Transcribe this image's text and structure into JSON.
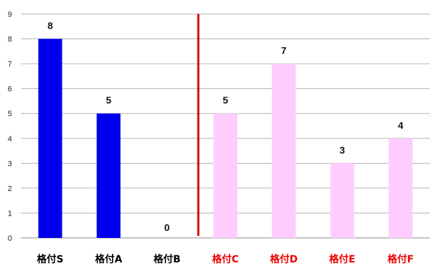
{
  "chart_data": {
    "type": "bar",
    "categories": [
      "格付S",
      "格付A",
      "格付B",
      "格付C",
      "格付D",
      "格付E",
      "格付F"
    ],
    "values": [
      8,
      5,
      0,
      5,
      7,
      3,
      4
    ],
    "ylim": [
      0,
      9
    ],
    "yticks": [
      "0",
      "1",
      "2",
      "3",
      "4",
      "5",
      "6",
      "7",
      "8",
      "9"
    ],
    "data_labels": [
      "8",
      "5",
      "0",
      "5",
      "7",
      "3",
      "4"
    ],
    "bar_colors": [
      "#0000ee",
      "#0000ee",
      "#0000ee",
      "#ffccff",
      "#ffccff",
      "#ffccff",
      "#ffccff"
    ],
    "category_colors": [
      "#000000",
      "#000000",
      "#000000",
      "#ee0000",
      "#ee0000",
      "#ee0000",
      "#ee0000"
    ],
    "separator_color": "#dd0000",
    "grid": true,
    "gridline_color": "#b3b3b3",
    "title": "",
    "xlabel": "",
    "ylabel": ""
  }
}
